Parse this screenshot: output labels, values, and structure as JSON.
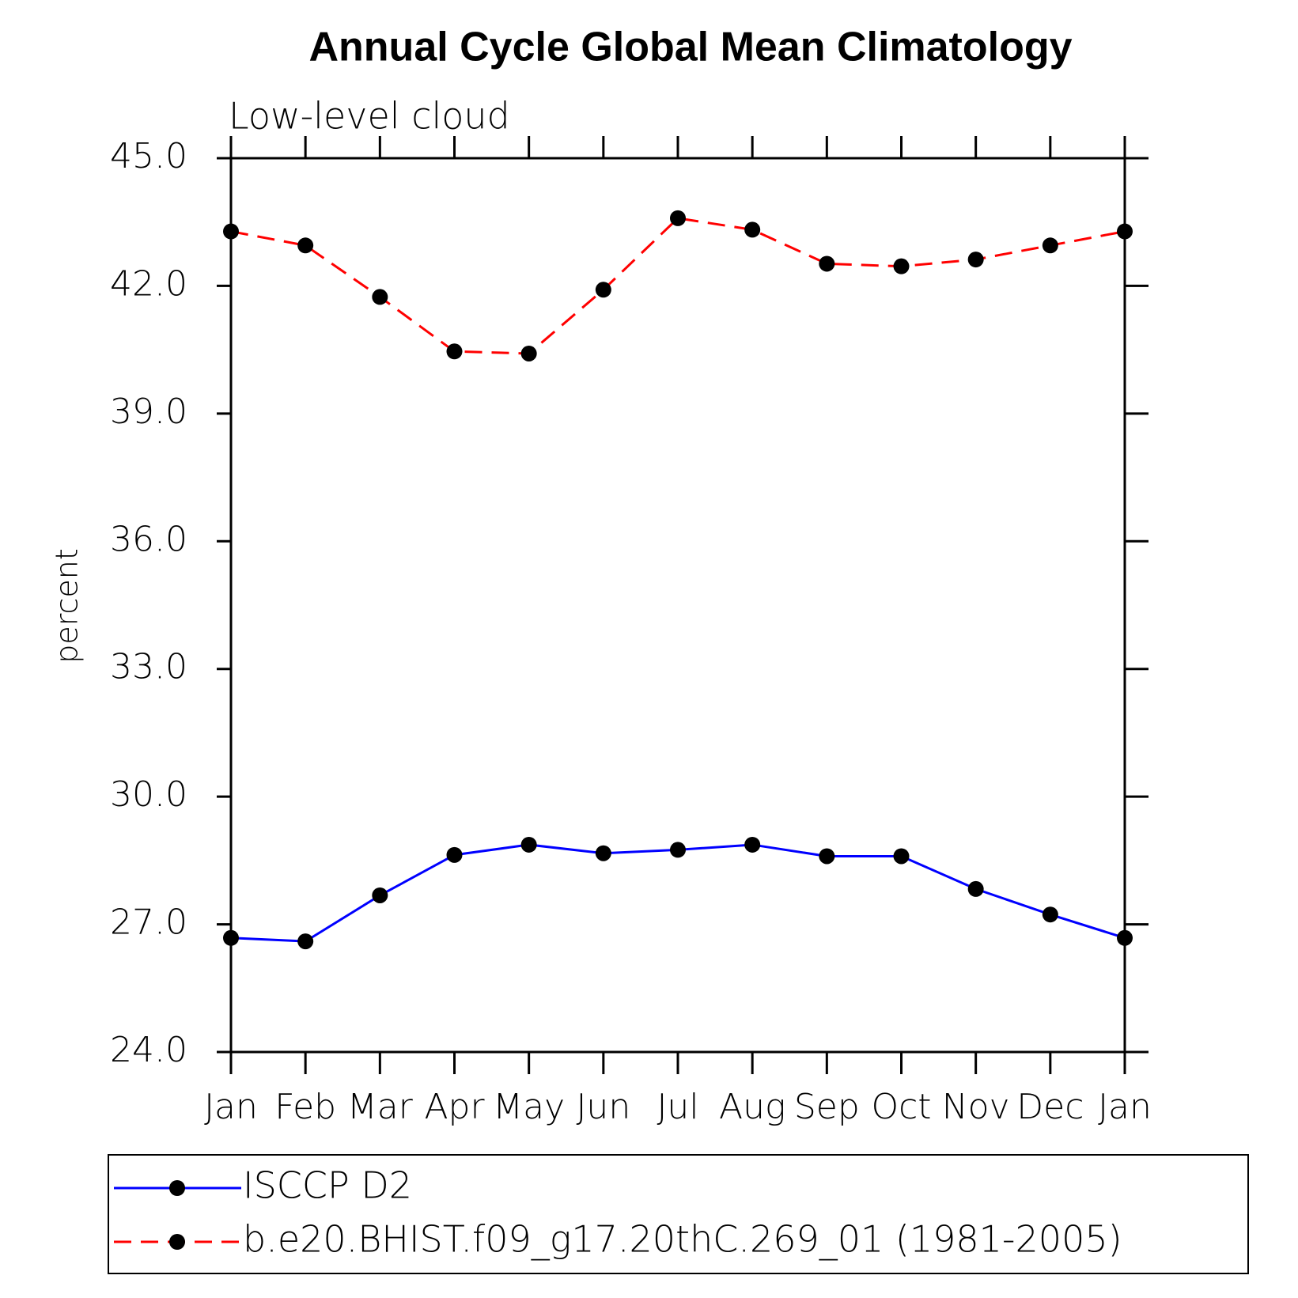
{
  "chart_data": {
    "type": "line",
    "title": "Annual Cycle Global Mean Climatology",
    "subtitle": "Low-level cloud",
    "y_label": "percent",
    "categories": [
      "Jan",
      "Feb",
      "Mar",
      "Apr",
      "May",
      "Jun",
      "Jul",
      "Aug",
      "Sep",
      "Oct",
      "Nov",
      "Dec",
      "Jan"
    ],
    "series": [
      {
        "name": "ISCCP D2",
        "color": "#0000ff",
        "dash": "solid",
        "values": [
          26.68,
          26.6,
          27.68,
          28.63,
          28.87,
          28.67,
          28.75,
          28.87,
          28.6,
          28.6,
          27.83,
          27.23,
          26.68
        ]
      },
      {
        "name": "b.e20.BHIST.f09_g17.20thC.269_01 (1981-2005)",
        "color": "#ff0000",
        "dash": "dashed",
        "values": [
          43.28,
          42.95,
          41.74,
          40.46,
          40.41,
          41.91,
          43.59,
          43.32,
          42.52,
          42.46,
          42.62,
          42.95,
          43.28
        ]
      }
    ],
    "ylim": [
      24,
      45
    ],
    "yticks": [
      {
        "value": 24,
        "label": "24.0"
      },
      {
        "value": 27,
        "label": "27.0"
      },
      {
        "value": 30,
        "label": "30.0"
      },
      {
        "value": 33,
        "label": "33.0"
      },
      {
        "value": 36,
        "label": "36.0"
      },
      {
        "value": 39,
        "label": "39.0"
      },
      {
        "value": 42,
        "label": "42.0"
      },
      {
        "value": 45,
        "label": "45.0"
      }
    ],
    "grid": false,
    "legend": "bottom"
  }
}
